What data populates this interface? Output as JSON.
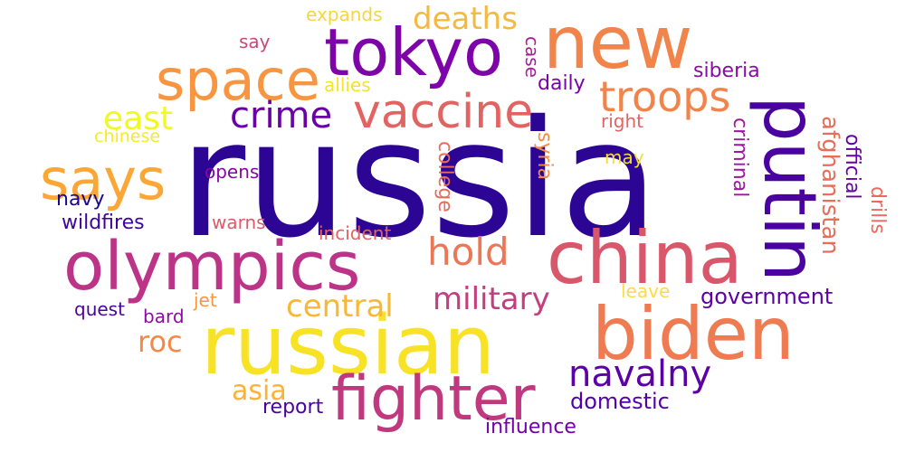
{
  "words": [
    {
      "text": "russia",
      "color": "#2c0594",
      "vertical": false
    },
    {
      "text": "russian",
      "color": "#f7e225",
      "vertical": false
    },
    {
      "text": "new",
      "color": "#f1844b",
      "vertical": false
    },
    {
      "text": "tokyo",
      "color": "#7e03a8",
      "vertical": false
    },
    {
      "text": "olympics",
      "color": "#bb3488",
      "vertical": false
    },
    {
      "text": "china",
      "color": "#d8576b",
      "vertical": false
    },
    {
      "text": "putin",
      "color": "#4a02a0",
      "vertical": true
    },
    {
      "text": "biden",
      "color": "#ee7b51",
      "vertical": false
    },
    {
      "text": "fighter",
      "color": "#c0397f",
      "vertical": false
    },
    {
      "text": "space",
      "color": "#f89540",
      "vertical": false
    },
    {
      "text": "says",
      "color": "#fca636",
      "vertical": false
    },
    {
      "text": "vaccine",
      "color": "#e16462",
      "vertical": false
    },
    {
      "text": "troops",
      "color": "#f2844b",
      "vertical": false
    },
    {
      "text": "crime",
      "color": "#6a00a8",
      "vertical": false
    },
    {
      "text": "navalny",
      "color": "#5c01a6",
      "vertical": false
    },
    {
      "text": "deaths",
      "color": "#f4b93f",
      "vertical": false
    },
    {
      "text": "hold",
      "color": "#ea7857",
      "vertical": false
    },
    {
      "text": "military",
      "color": "#c43e7f",
      "vertical": false
    },
    {
      "text": "central",
      "color": "#f9b834",
      "vertical": false
    },
    {
      "text": "east",
      "color": "#f0f921",
      "vertical": false
    },
    {
      "text": "roc",
      "color": "#f48849",
      "vertical": false
    },
    {
      "text": "asia",
      "color": "#fcb233",
      "vertical": false
    },
    {
      "text": "domestic",
      "color": "#5302a3",
      "vertical": false
    },
    {
      "text": "government",
      "color": "#5d01a6",
      "vertical": false
    },
    {
      "text": "expands",
      "color": "#f6d543",
      "vertical": false
    },
    {
      "text": "say",
      "color": "#cc4778",
      "vertical": false
    },
    {
      "text": "allies",
      "color": "#f7e225",
      "vertical": false
    },
    {
      "text": "case",
      "color": "#a62098",
      "vertical": true
    },
    {
      "text": "daily",
      "color": "#7a02a8",
      "vertical": false
    },
    {
      "text": "siberia",
      "color": "#8b0aa5",
      "vertical": false
    },
    {
      "text": "right",
      "color": "#e16462",
      "vertical": false
    },
    {
      "text": "chinese",
      "color": "#f5eb27",
      "vertical": false
    },
    {
      "text": "navy",
      "color": "#1c068f",
      "vertical": false
    },
    {
      "text": "opens",
      "color": "#8606a6",
      "vertical": false
    },
    {
      "text": "may",
      "color": "#f5db3c",
      "vertical": false
    },
    {
      "text": "syria",
      "color": "#f58c46",
      "vertical": true
    },
    {
      "text": "college",
      "color": "#e66c5c",
      "vertical": true
    },
    {
      "text": "criminal",
      "color": "#9c179e",
      "vertical": true
    },
    {
      "text": "afghanistan",
      "color": "#e76f5a",
      "vertical": true
    },
    {
      "text": "official",
      "color": "#6600a7",
      "vertical": true
    },
    {
      "text": "drills",
      "color": "#e86b5d",
      "vertical": true
    },
    {
      "text": "wildfires",
      "color": "#3e049c",
      "vertical": false
    },
    {
      "text": "warns",
      "color": "#db5c68",
      "vertical": false
    },
    {
      "text": "incident",
      "color": "#e16462",
      "vertical": false
    },
    {
      "text": "jet",
      "color": "#f89540",
      "vertical": false
    },
    {
      "text": "leave",
      "color": "#fdd94d",
      "vertical": false
    },
    {
      "text": "quest",
      "color": "#4c02a1",
      "vertical": false
    },
    {
      "text": "bard",
      "color": "#8e0ca4",
      "vertical": false
    },
    {
      "text": "report",
      "color": "#4903a0",
      "vertical": false
    },
    {
      "text": "influence",
      "color": "#7301a8",
      "vertical": false
    }
  ]
}
